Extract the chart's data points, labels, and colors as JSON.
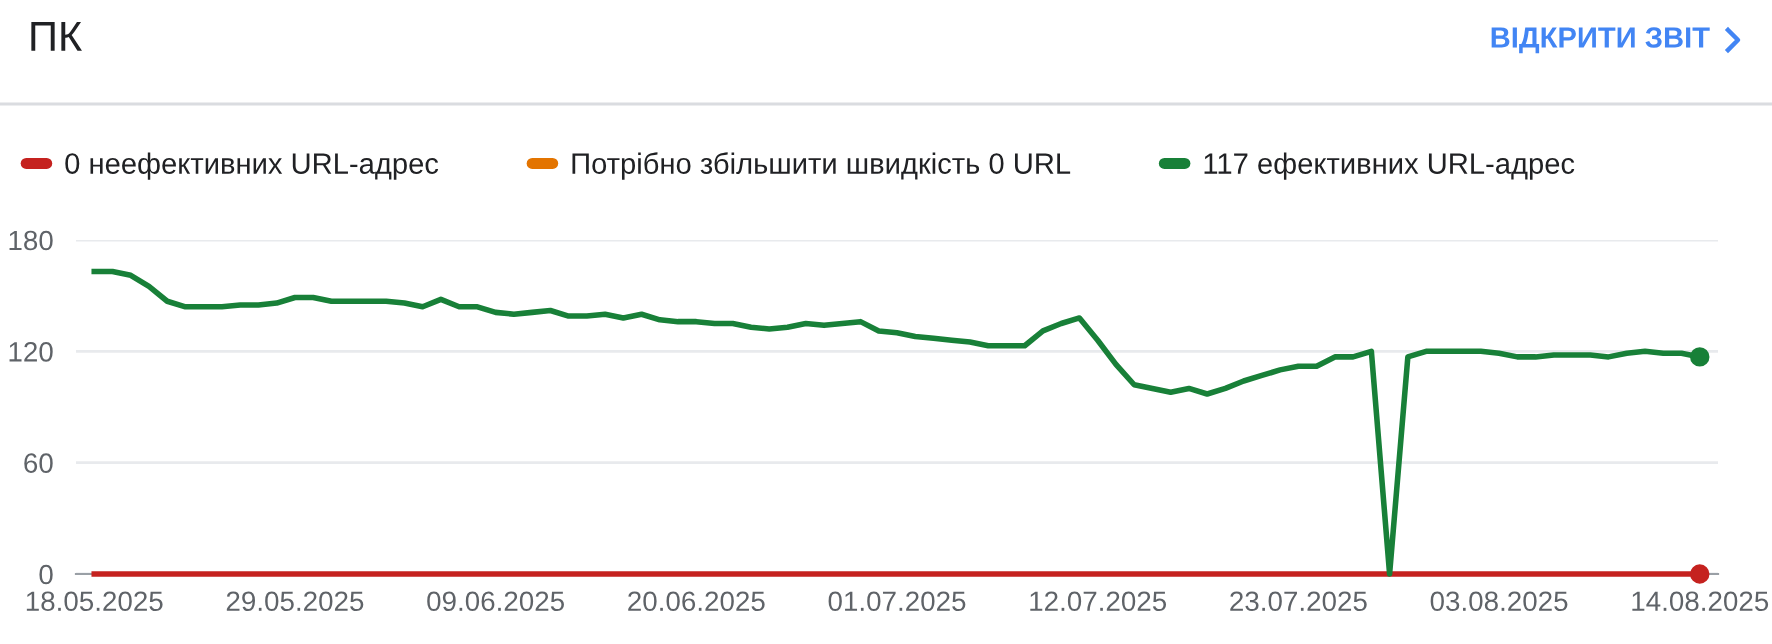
{
  "chart_data": {
    "type": "line",
    "title": "ПК",
    "annotations": [
      "ВІДКРИТИ ЗВІТ"
    ],
    "x": [
      "2025-05-18",
      "2025-05-19",
      "2025-05-20",
      "2025-05-21",
      "2025-05-22",
      "2025-05-23",
      "2025-05-24",
      "2025-05-25",
      "2025-05-26",
      "2025-05-27",
      "2025-05-28",
      "2025-05-29",
      "2025-05-30",
      "2025-05-31",
      "2025-06-01",
      "2025-06-02",
      "2025-06-03",
      "2025-06-04",
      "2025-06-05",
      "2025-06-06",
      "2025-06-07",
      "2025-06-08",
      "2025-06-09",
      "2025-06-10",
      "2025-06-11",
      "2025-06-12",
      "2025-06-13",
      "2025-06-14",
      "2025-06-15",
      "2025-06-16",
      "2025-06-17",
      "2025-06-18",
      "2025-06-19",
      "2025-06-20",
      "2025-06-21",
      "2025-06-22",
      "2025-06-23",
      "2025-06-24",
      "2025-06-25",
      "2025-06-26",
      "2025-06-27",
      "2025-06-28",
      "2025-06-29",
      "2025-06-30",
      "2025-07-01",
      "2025-07-02",
      "2025-07-03",
      "2025-07-04",
      "2025-07-05",
      "2025-07-06",
      "2025-07-07",
      "2025-07-08",
      "2025-07-09",
      "2025-07-10",
      "2025-07-11",
      "2025-07-12",
      "2025-07-13",
      "2025-07-14",
      "2025-07-15",
      "2025-07-16",
      "2025-07-17",
      "2025-07-18",
      "2025-07-19",
      "2025-07-20",
      "2025-07-21",
      "2025-07-22",
      "2025-07-23",
      "2025-07-24",
      "2025-07-25",
      "2025-07-26",
      "2025-07-27",
      "2025-07-28",
      "2025-07-29",
      "2025-07-30",
      "2025-07-31",
      "2025-08-01",
      "2025-08-02",
      "2025-08-03",
      "2025-08-04",
      "2025-08-05",
      "2025-08-06",
      "2025-08-07",
      "2025-08-08",
      "2025-08-09",
      "2025-08-10",
      "2025-08-11",
      "2025-08-12",
      "2025-08-13",
      "2025-08-14"
    ],
    "series": [
      {
        "name": "0 неефективних URL-адрес",
        "color": "#c5221f",
        "values": [
          0,
          0,
          0,
          0,
          0,
          0,
          0,
          0,
          0,
          0,
          0,
          0,
          0,
          0,
          0,
          0,
          0,
          0,
          0,
          0,
          0,
          0,
          0,
          0,
          0,
          0,
          0,
          0,
          0,
          0,
          0,
          0,
          0,
          0,
          0,
          0,
          0,
          0,
          0,
          0,
          0,
          0,
          0,
          0,
          0,
          0,
          0,
          0,
          0,
          0,
          0,
          0,
          0,
          0,
          0,
          0,
          0,
          0,
          0,
          0,
          0,
          0,
          0,
          0,
          0,
          0,
          0,
          0,
          0,
          0,
          0,
          0,
          0,
          0,
          0,
          0,
          0,
          0,
          0,
          0,
          0,
          0,
          0,
          0,
          0,
          0,
          0,
          0,
          0
        ]
      },
      {
        "name": "Потрібно збільшити швидкість 0 URL",
        "color": "#e37400",
        "values": [
          null,
          null,
          null,
          null,
          null,
          null,
          null,
          null,
          null,
          null,
          null,
          null,
          null,
          null,
          null,
          null,
          null,
          null,
          null,
          null,
          null,
          null,
          null,
          null,
          null,
          null,
          null,
          null,
          null,
          null,
          null,
          null,
          null,
          null,
          null,
          null,
          null,
          null,
          null,
          null,
          null,
          null,
          null,
          null,
          null,
          null,
          null,
          null,
          null,
          null,
          null,
          null,
          null,
          null,
          null,
          null,
          null,
          null,
          null,
          null,
          null,
          null,
          null,
          null,
          null,
          null,
          null,
          null,
          null,
          null,
          null,
          null,
          null,
          null,
          null,
          null,
          null,
          null,
          null,
          null,
          null,
          null,
          null,
          null,
          null,
          null,
          null,
          null,
          null
        ]
      },
      {
        "name": "117 ефективних URL-адрес",
        "color": "#188038",
        "values": [
          163,
          163,
          161,
          155,
          147,
          144,
          144,
          144,
          145,
          145,
          146,
          149,
          149,
          147,
          147,
          147,
          147,
          146,
          144,
          148,
          144,
          144,
          141,
          140,
          141,
          142,
          139,
          139,
          140,
          138,
          140,
          137,
          136,
          136,
          135,
          135,
          133,
          132,
          133,
          135,
          134,
          135,
          136,
          131,
          130,
          128,
          127,
          126,
          125,
          123,
          123,
          123,
          131,
          135,
          138,
          126,
          113,
          102,
          100,
          98,
          100,
          97,
          100,
          104,
          107,
          110,
          112,
          112,
          117,
          117,
          120,
          0,
          117,
          120,
          120,
          120,
          120,
          119,
          117,
          117,
          118,
          118,
          118,
          117,
          119,
          120,
          119,
          119,
          117
        ]
      }
    ],
    "xlim": [
      "2025-05-17",
      "2025-08-15"
    ],
    "xticks": [
      {
        "value": "2025-05-18",
        "label": "18.05.2025"
      },
      {
        "value": "2025-05-29",
        "label": "29.05.2025"
      },
      {
        "value": "2025-06-09",
        "label": "09.06.2025"
      },
      {
        "value": "2025-06-20",
        "label": "20.06.2025"
      },
      {
        "value": "2025-07-01",
        "label": "01.07.2025"
      },
      {
        "value": "2025-07-12",
        "label": "12.07.2025"
      },
      {
        "value": "2025-07-23",
        "label": "23.07.2025"
      },
      {
        "value": "2025-08-03",
        "label": "03.08.2025"
      },
      {
        "value": "2025-08-14",
        "label": "14.08.2025"
      }
    ],
    "ylim": [
      0,
      180
    ],
    "yticks": [
      0,
      60,
      120,
      180
    ],
    "grid": "y",
    "legend": "top left",
    "marker": "none",
    "line_style": "solid"
  }
}
